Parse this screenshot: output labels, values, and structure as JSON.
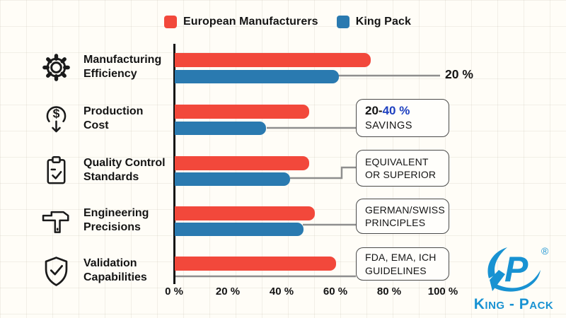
{
  "legend": {
    "items": [
      {
        "label": "European Manufacturers",
        "color": "#f2483b"
      },
      {
        "label": "King Pack",
        "color": "#2a7ab0"
      }
    ]
  },
  "chart_data": {
    "type": "bar",
    "orientation": "horizontal",
    "categories": [
      "Manufacturing Efficiency",
      "Production Cost",
      "Quality Control Standards",
      "Engineering Precisions",
      "Validation Capabilities"
    ],
    "series": [
      {
        "name": "European Manufacturers",
        "color": "#f2483b",
        "values": [
          73,
          50,
          50,
          52,
          60
        ]
      },
      {
        "name": "King Pack",
        "color": "#2a7ab0",
        "values": [
          61,
          34,
          43,
          48,
          null
        ]
      }
    ],
    "xlim": [
      0,
      100
    ],
    "x_ticks": [
      "0 %",
      "20 %",
      "40 %",
      "60 %",
      "80 %",
      "100 %"
    ],
    "grid": "faint paper grid",
    "legend_position": "top",
    "annotations": [
      "20 %",
      "20-40 % SAVINGS",
      "EQUIVALENT OR SUPERIOR",
      "GERMAN/SWISS PRINCIPLES",
      "FDA, EMA, ICH GUIDELINES"
    ]
  },
  "rows": [
    {
      "icon": "gear-icon",
      "label_line1": "Manufacturing",
      "label_line2": "Efficiency"
    },
    {
      "icon": "dollar-decrease-icon",
      "label_line1": "Production",
      "label_line2": "Cost"
    },
    {
      "icon": "clipboard-check-icon",
      "label_line1": "Quality Control",
      "label_line2": "Standards"
    },
    {
      "icon": "caliper-icon",
      "label_line1": "Engineering",
      "label_line2": "Precisions"
    },
    {
      "icon": "shield-check-icon",
      "label_line1": "Validation",
      "label_line2": "Capabilities"
    }
  ],
  "callouts": {
    "row1": {
      "text": "20 %"
    },
    "row2": {
      "part_black": "20-",
      "part_blue": "40 %",
      "line2": "SAVINGS"
    },
    "row3": {
      "line1": "EQUIVALENT",
      "line2": "OR SUPERIOR"
    },
    "row4": {
      "line1": "GERMAN/SWISS",
      "line2": "PRINCIPLES"
    },
    "row5": {
      "line1": "FDA, EMA, ICH",
      "line2": "GUIDELINES"
    }
  },
  "logo": {
    "mark": "KP",
    "registered": "®",
    "name": "King - Pack",
    "color": "#1892d2"
  },
  "colors": {
    "bar_red": "#f2483b",
    "bar_blue": "#2a7ab0",
    "accent_blue": "#1e40c0",
    "logo_blue": "#1892d2",
    "connector": "#8e8e8e",
    "box_border": "#4a4a4a",
    "text": "#141414",
    "background": "#fffdf7"
  }
}
